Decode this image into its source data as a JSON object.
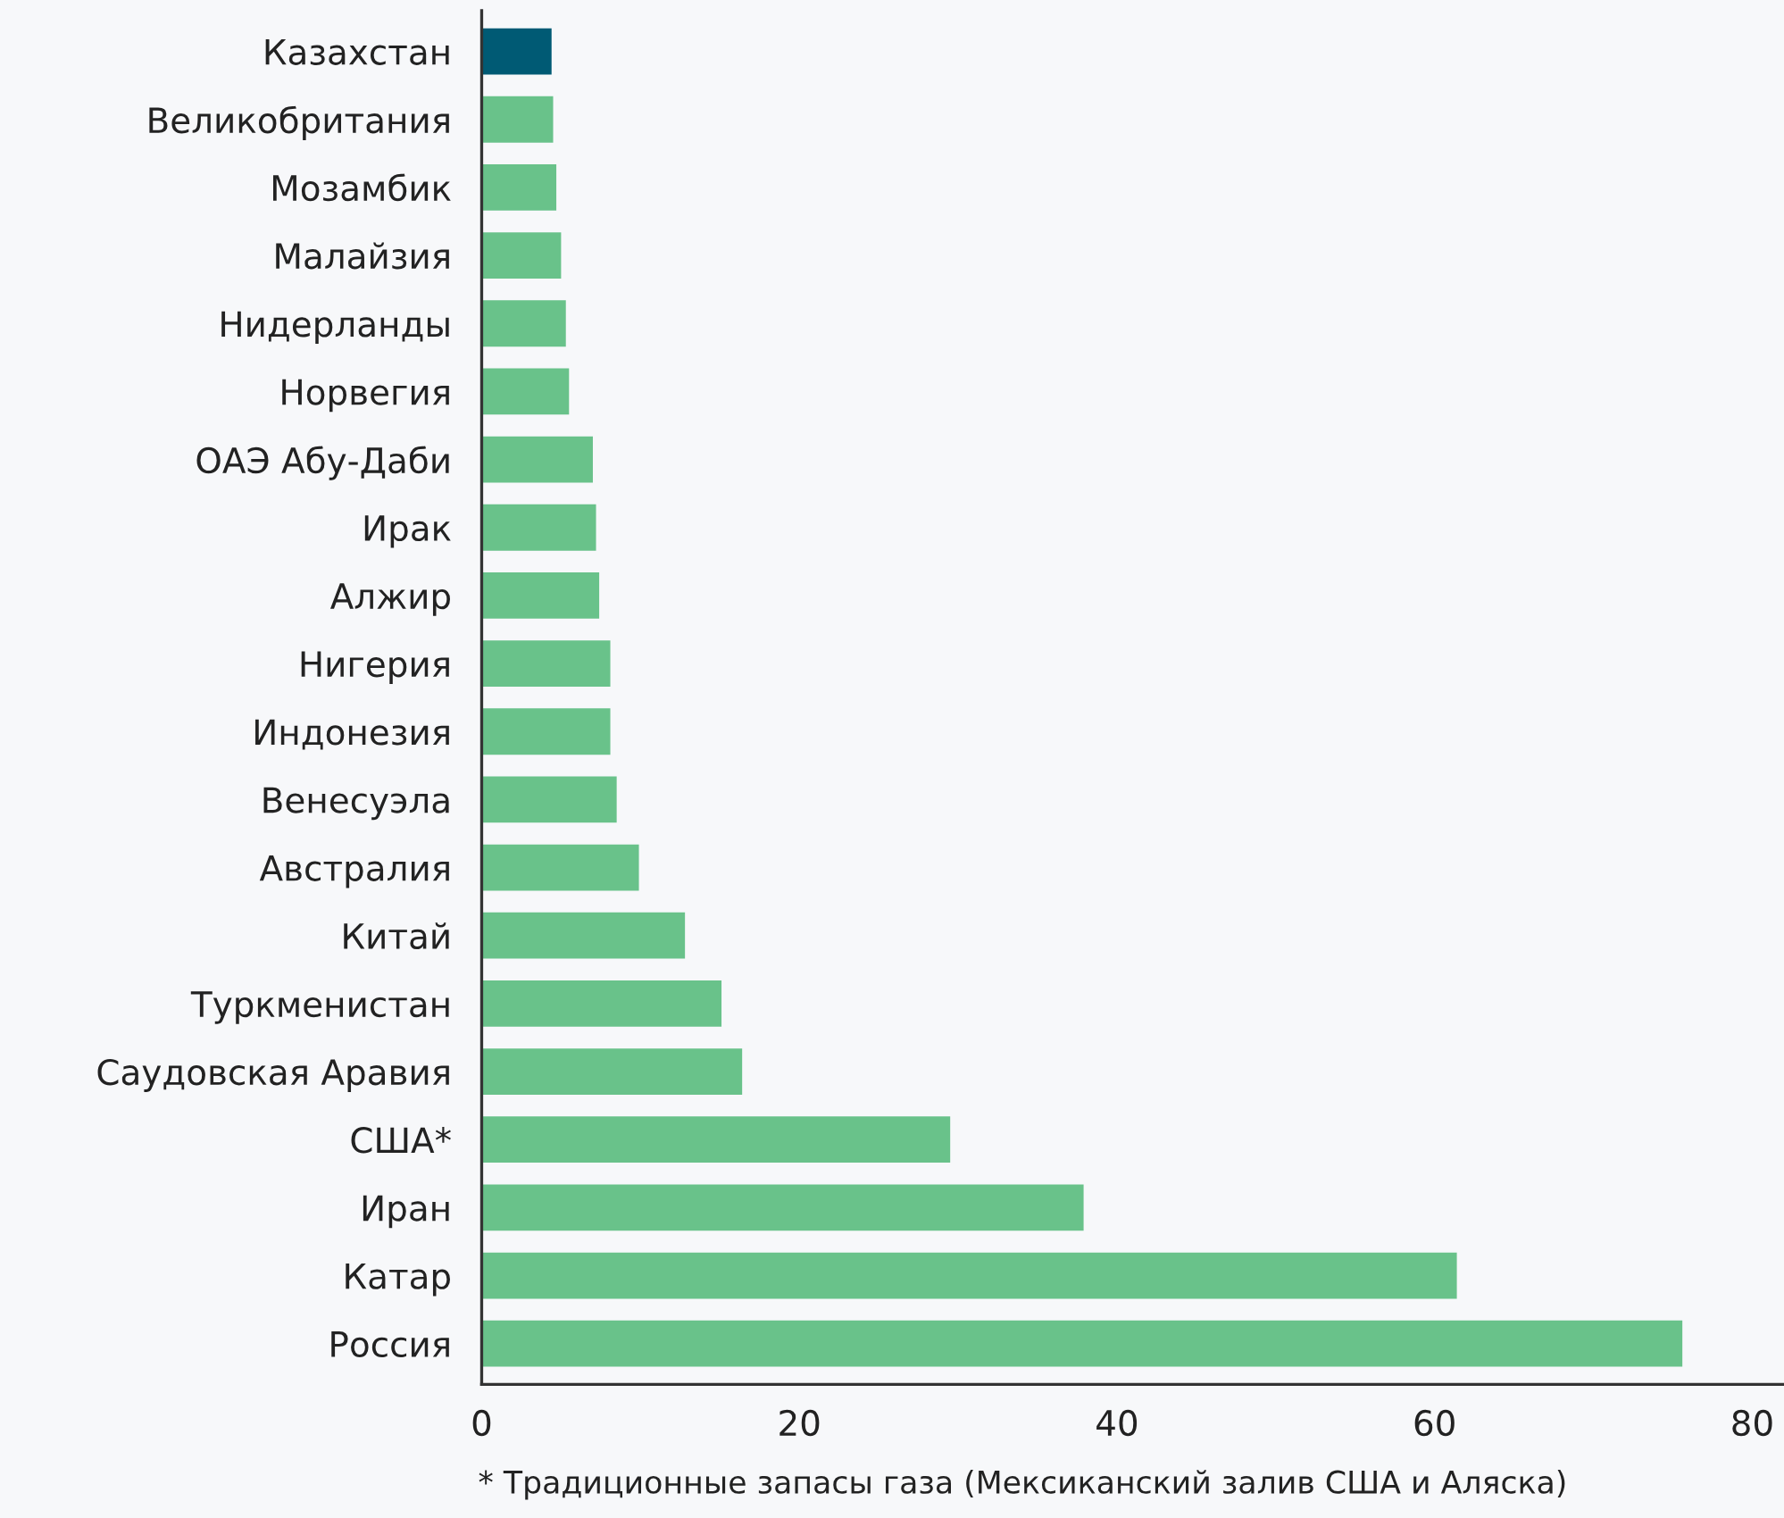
{
  "chart_data": {
    "type": "bar",
    "orientation": "horizontal",
    "categories": [
      "Казахстан",
      "Великобритания",
      "Мозамбик",
      "Малайзия",
      "Нидерланды",
      "Норвегия",
      "ОАЭ Абу-Даби",
      "Ирак",
      "Алжир",
      "Нигерия",
      "Индонезия",
      "Венесуэла",
      "Австралия",
      "Китай",
      "Туркменистан",
      "Саудовская Аравия",
      "США*",
      "Иран",
      "Катар",
      "Россия"
    ],
    "values": [
      4.4,
      4.5,
      4.7,
      5.0,
      5.3,
      5.5,
      7.0,
      7.2,
      7.4,
      8.1,
      8.1,
      8.5,
      9.9,
      12.8,
      15.1,
      16.4,
      29.5,
      37.9,
      61.4,
      75.6
    ],
    "colors": [
      "#005a74",
      "#69c28a",
      "#69c28a",
      "#69c28a",
      "#69c28a",
      "#69c28a",
      "#69c28a",
      "#69c28a",
      "#69c28a",
      "#69c28a",
      "#69c28a",
      "#69c28a",
      "#69c28a",
      "#69c28a",
      "#69c28a",
      "#69c28a",
      "#69c28a",
      "#69c28a",
      "#69c28a",
      "#69c28a"
    ],
    "xlim": [
      0,
      82
    ],
    "xticks": [
      0,
      20,
      40,
      60,
      80
    ],
    "grid": false,
    "annotations": [
      "* Традиционные запасы газа (Мексиканский залив США и Аляска)"
    ]
  }
}
